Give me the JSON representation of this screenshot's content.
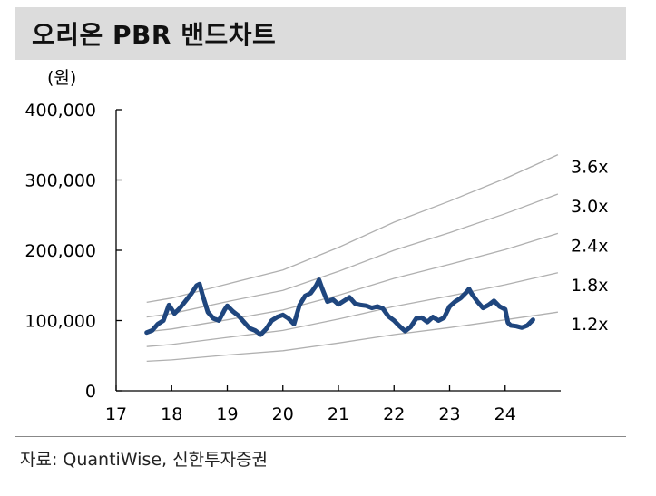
{
  "title": "오리온 PBR 밴드차트",
  "source": "자료: QuantiWise, 신한투자증권",
  "colors": {
    "price": "#1f467e",
    "band": "#b0b0b0",
    "title_bg": "#dcdcdc",
    "axis": "#000000"
  },
  "chart_data": {
    "type": "line",
    "unit_label": "(원)",
    "xlim": [
      17,
      25
    ],
    "ylim": [
      0,
      400000
    ],
    "x_ticks": [
      17,
      18,
      19,
      20,
      21,
      22,
      23,
      24
    ],
    "y_ticks": [
      0,
      100000,
      200000,
      300000,
      400000
    ],
    "y_tick_labels": [
      "0",
      "100,000",
      "200,000",
      "300,000",
      "400,000"
    ],
    "grid": false,
    "bands": [
      {
        "name": "1.2x",
        "x": [
          17.55,
          18,
          19,
          20,
          21,
          22,
          23,
          24,
          24.95
        ],
        "values": [
          42000,
          44000,
          51000,
          57000,
          68000,
          80000,
          90000,
          101000,
          112000
        ]
      },
      {
        "name": "1.8x",
        "x": [
          17.55,
          18,
          19,
          20,
          21,
          22,
          23,
          24,
          24.95
        ],
        "values": [
          63000,
          66000,
          76000,
          86000,
          102000,
          120000,
          135000,
          151000,
          168000
        ]
      },
      {
        "name": "2.4x",
        "x": [
          17.55,
          18,
          19,
          20,
          21,
          22,
          23,
          24,
          24.95
        ],
        "values": [
          84000,
          88000,
          101000,
          115000,
          136000,
          160000,
          180000,
          201000,
          224000
        ]
      },
      {
        "name": "3.0x",
        "x": [
          17.55,
          18,
          19,
          20,
          21,
          22,
          23,
          24,
          24.95
        ],
        "values": [
          105000,
          110000,
          127000,
          143000,
          170000,
          200000,
          225000,
          252000,
          280000
        ]
      },
      {
        "name": "3.6x",
        "x": [
          17.55,
          18,
          19,
          20,
          21,
          22,
          23,
          24,
          24.95
        ],
        "values": [
          126000,
          132000,
          152000,
          172000,
          204000,
          240000,
          270000,
          302000,
          336000
        ]
      }
    ],
    "price": {
      "x": [
        17.55,
        17.65,
        17.75,
        17.85,
        17.95,
        18.05,
        18.15,
        18.25,
        18.35,
        18.45,
        18.5,
        18.55,
        18.65,
        18.75,
        18.85,
        18.95,
        19.0,
        19.1,
        19.2,
        19.3,
        19.4,
        19.5,
        19.6,
        19.7,
        19.8,
        19.9,
        20.0,
        20.1,
        20.2,
        20.3,
        20.4,
        20.5,
        20.6,
        20.65,
        20.7,
        20.8,
        20.9,
        21.0,
        21.1,
        21.2,
        21.3,
        21.4,
        21.5,
        21.6,
        21.7,
        21.8,
        21.9,
        22.0,
        22.1,
        22.2,
        22.3,
        22.4,
        22.5,
        22.6,
        22.7,
        22.8,
        22.9,
        23.0,
        23.1,
        23.2,
        23.3,
        23.35,
        23.4,
        23.5,
        23.6,
        23.7,
        23.8,
        23.9,
        24.0,
        24.05,
        24.1,
        24.2,
        24.3,
        24.4,
        24.5
      ],
      "values": [
        83000,
        86000,
        95000,
        100000,
        122000,
        110000,
        118000,
        128000,
        138000,
        150000,
        152000,
        138000,
        112000,
        103000,
        100000,
        115000,
        121000,
        113000,
        107000,
        98000,
        89000,
        86000,
        80000,
        88000,
        100000,
        105000,
        108000,
        103000,
        95000,
        122000,
        135000,
        139000,
        150000,
        158000,
        147000,
        127000,
        130000,
        123000,
        128000,
        133000,
        124000,
        122000,
        121000,
        118000,
        120000,
        117000,
        106000,
        100000,
        92000,
        85000,
        91000,
        103000,
        104000,
        98000,
        105000,
        100000,
        104000,
        120000,
        127000,
        132000,
        140000,
        145000,
        138000,
        127000,
        118000,
        122000,
        128000,
        120000,
        116000,
        97000,
        93000,
        92000,
        90000,
        93000,
        101000
      ]
    }
  }
}
